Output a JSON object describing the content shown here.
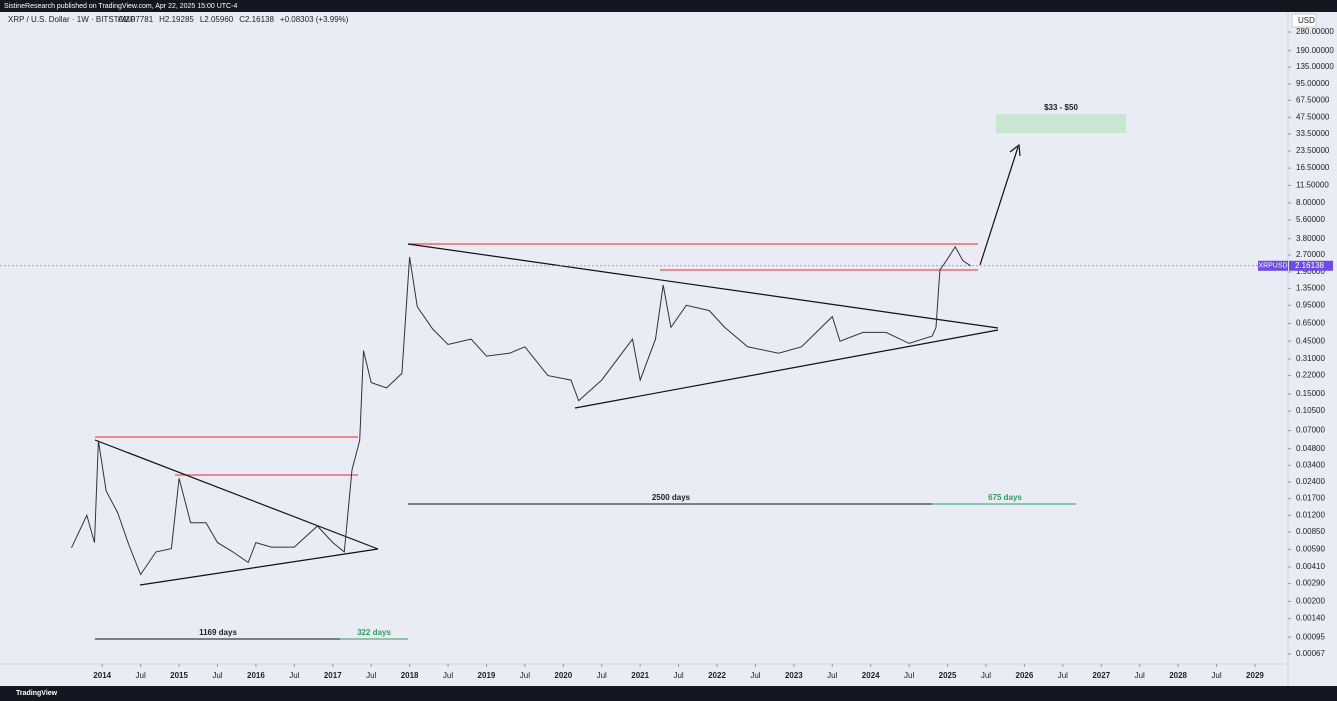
{
  "publisher_bar": "SistineResearch published on TradingView.com, Apr 22, 2025 15:00 UTC-4",
  "footer": "TradingView",
  "chart_data": {
    "type": "line",
    "title": "XRP / U.S. Dollar · 1W · BITSTAMP",
    "ohlc_labels": [
      "O2.07781",
      "H2.19285",
      "L2.05960",
      "C2.16138",
      "+0.08303 (+3.99%)"
    ],
    "currency": "USD",
    "symbol": "XRPUSD",
    "last_price": {
      "value": 2.16138,
      "label": "2.16138"
    },
    "log_scale": true,
    "grid": false,
    "color": "#333333",
    "x": [
      2013.6,
      2013.8,
      2013.9,
      2013.95,
      2014.05,
      2014.2,
      2014.35,
      2014.5,
      2014.7,
      2014.9,
      2015.0,
      2015.15,
      2015.35,
      2015.5,
      2015.7,
      2015.9,
      2016.0,
      2016.2,
      2016.5,
      2016.8,
      2017.0,
      2017.15,
      2017.25,
      2017.35,
      2017.4,
      2017.5,
      2017.7,
      2017.9,
      2018.0,
      2018.1,
      2018.3,
      2018.5,
      2018.8,
      2019.0,
      2019.3,
      2019.5,
      2019.8,
      2020.1,
      2020.2,
      2020.5,
      2020.9,
      2021.0,
      2021.2,
      2021.3,
      2021.4,
      2021.6,
      2021.9,
      2022.1,
      2022.4,
      2022.8,
      2023.1,
      2023.5,
      2023.6,
      2023.9,
      2024.2,
      2024.5,
      2024.8,
      2024.85,
      2024.9,
      2025.0,
      2025.1,
      2025.2,
      2025.3
    ],
    "values": [
      0.0061,
      0.012,
      0.0068,
      0.057,
      0.02,
      0.0127,
      0.0064,
      0.0035,
      0.0056,
      0.006,
      0.026,
      0.0103,
      0.0103,
      0.0068,
      0.0056,
      0.0045,
      0.0068,
      0.0062,
      0.0062,
      0.0096,
      0.0068,
      0.0056,
      0.031,
      0.057,
      0.37,
      0.19,
      0.17,
      0.23,
      2.6,
      0.92,
      0.58,
      0.42,
      0.47,
      0.33,
      0.35,
      0.4,
      0.22,
      0.2,
      0.13,
      0.2,
      0.47,
      0.2,
      0.47,
      1.45,
      0.6,
      0.95,
      0.85,
      0.6,
      0.4,
      0.35,
      0.4,
      0.75,
      0.45,
      0.54,
      0.54,
      0.43,
      0.5,
      0.6,
      1.98,
      2.5,
      3.2,
      2.4,
      2.16
    ],
    "xlim": [
      2012.67,
      2029.43
    ],
    "ylim": [
      0.000344,
      425
    ],
    "xticks": [
      {
        "value": 2014,
        "label": "2014"
      },
      {
        "value": 2014.5,
        "label": "Jul"
      },
      {
        "value": 2015,
        "label": "2015"
      },
      {
        "value": 2015.5,
        "label": "Jul"
      },
      {
        "value": 2016,
        "label": "2016"
      },
      {
        "value": 2016.5,
        "label": "Jul"
      },
      {
        "value": 2017,
        "label": "2017"
      },
      {
        "value": 2017.5,
        "label": "Jul"
      },
      {
        "value": 2018,
        "label": "2018"
      },
      {
        "value": 2018.5,
        "label": "Jul"
      },
      {
        "value": 2019,
        "label": "2019"
      },
      {
        "value": 2019.5,
        "label": "Jul"
      },
      {
        "value": 2020,
        "label": "2020"
      },
      {
        "value": 2020.5,
        "label": "Jul"
      },
      {
        "value": 2021,
        "label": "2021"
      },
      {
        "value": 2021.5,
        "label": "Jul"
      },
      {
        "value": 2022,
        "label": "2022"
      },
      {
        "value": 2022.5,
        "label": "Jul"
      },
      {
        "value": 2023,
        "label": "2023"
      },
      {
        "value": 2023.5,
        "label": "Jul"
      },
      {
        "value": 2024,
        "label": "2024"
      },
      {
        "value": 2024.5,
        "label": "Jul"
      },
      {
        "value": 2025,
        "label": "2025"
      },
      {
        "value": 2025.5,
        "label": "Jul"
      },
      {
        "value": 2026,
        "label": "2026"
      },
      {
        "value": 2026.5,
        "label": "Jul"
      },
      {
        "value": 2027,
        "label": "2027"
      },
      {
        "value": 2027.5,
        "label": "Jul"
      },
      {
        "value": 2028,
        "label": "2028"
      },
      {
        "value": 2028.5,
        "label": "Jul"
      },
      {
        "value": 2029,
        "label": "2029"
      }
    ],
    "yticks": [
      {
        "value": 280,
        "label": "280.00000"
      },
      {
        "value": 190,
        "label": "190.00000"
      },
      {
        "value": 135,
        "label": "135.00000"
      },
      {
        "value": 95,
        "label": "95.00000"
      },
      {
        "value": 67.5,
        "label": "67.50000"
      },
      {
        "value": 47.5,
        "label": "47.50000"
      },
      {
        "value": 33.5,
        "label": "33.50000"
      },
      {
        "value": 23.5,
        "label": "23.50000"
      },
      {
        "value": 16.5,
        "label": "16.50000"
      },
      {
        "value": 11.5,
        "label": "11.50000"
      },
      {
        "value": 8,
        "label": "8.00000"
      },
      {
        "value": 5.6,
        "label": "5.60000"
      },
      {
        "value": 3.8,
        "label": "3.80000"
      },
      {
        "value": 2.7,
        "label": "2.70000"
      },
      {
        "value": 1.9,
        "label": "1.90000"
      },
      {
        "value": 1.35,
        "label": "1.35000"
      },
      {
        "value": 0.95,
        "label": "0.95000"
      },
      {
        "value": 0.65,
        "label": "0.65000"
      },
      {
        "value": 0.45,
        "label": "0.45000"
      },
      {
        "value": 0.31,
        "label": "0.31000"
      },
      {
        "value": 0.22,
        "label": "0.22000"
      },
      {
        "value": 0.15,
        "label": "0.15000"
      },
      {
        "value": 0.105,
        "label": "0.10500"
      },
      {
        "value": 0.07,
        "label": "0.07000"
      },
      {
        "value": 0.048,
        "label": "0.04800"
      },
      {
        "value": 0.034,
        "label": "0.03400"
      },
      {
        "value": 0.024,
        "label": "0.02400"
      },
      {
        "value": 0.017,
        "label": "0.01700"
      },
      {
        "value": 0.012,
        "label": "0.01200"
      },
      {
        "value": 0.0085,
        "label": "0.00850"
      },
      {
        "value": 0.0059,
        "label": "0.00590"
      },
      {
        "value": 0.0041,
        "label": "0.00410"
      },
      {
        "value": 0.0029,
        "label": "0.00290"
      },
      {
        "value": 0.002,
        "label": "0.00200"
      },
      {
        "value": 0.0014,
        "label": "0.00140"
      },
      {
        "value": 0.00095,
        "label": "0.00095"
      },
      {
        "value": 0.00067,
        "label": "0.00067"
      }
    ],
    "annotations": [
      "$33 - $50",
      "2500 days",
      "675 days",
      "1169 days",
      "322 days"
    ]
  }
}
